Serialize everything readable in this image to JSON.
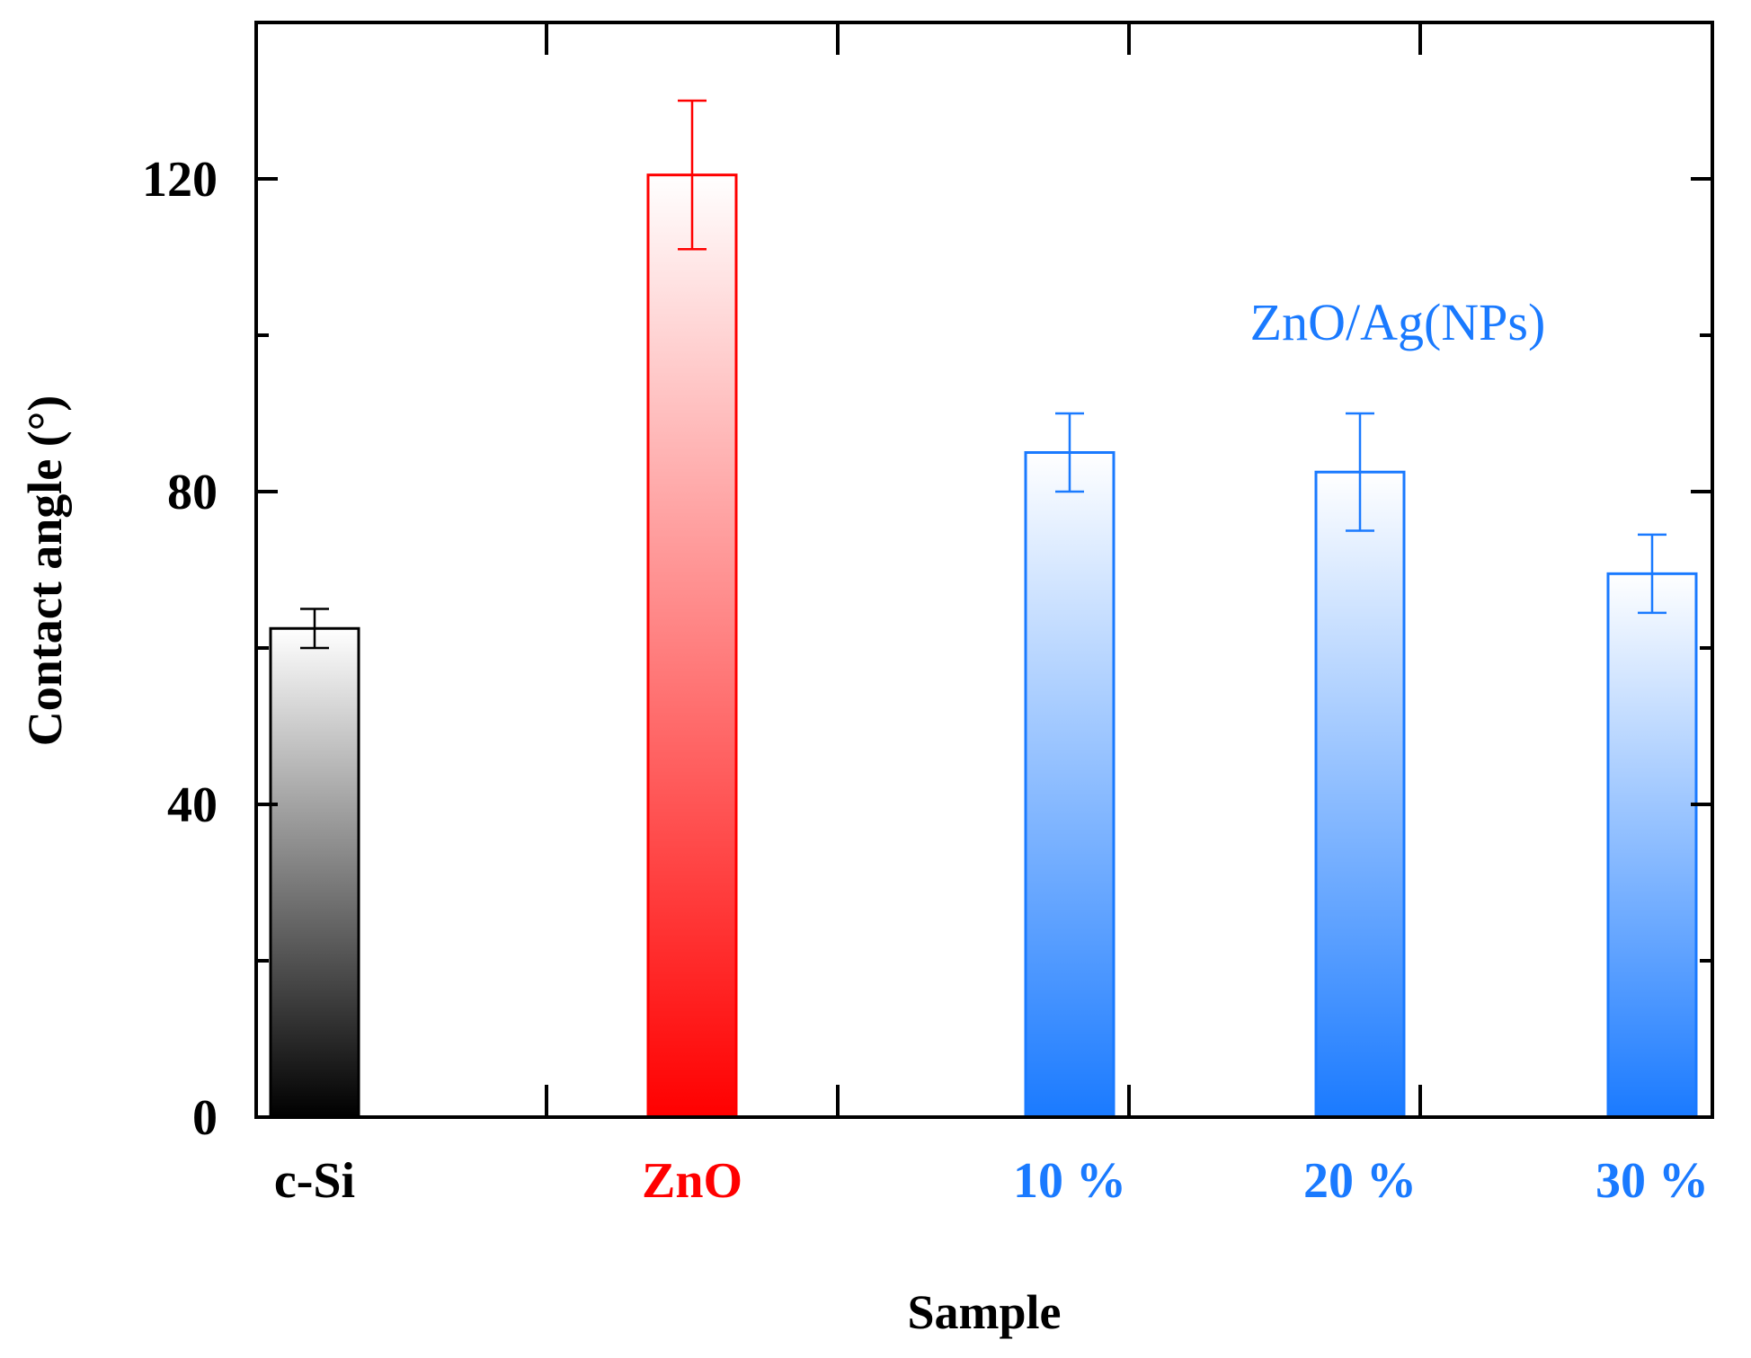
{
  "chart_data": {
    "type": "bar",
    "title": "",
    "xlabel": "Sample",
    "ylabel": "Contact angle (°)",
    "ylim": [
      0,
      140
    ],
    "y_ticks": [
      "0",
      "40",
      "80",
      "120"
    ],
    "grid": false,
    "categories": [
      "c-Si",
      "ZnO",
      "10 %",
      "20 %",
      "30 %"
    ],
    "values": [
      62.5,
      120.5,
      85,
      82.5,
      69.5
    ],
    "errors": [
      2.5,
      9.5,
      5,
      7.5,
      5
    ],
    "colors": [
      "#000000",
      "#ff0000",
      "#1a7aff",
      "#1a7aff",
      "#1a7aff"
    ],
    "annotation": {
      "text": "ZnO/Ag(NPs)",
      "color": "#1a7aff"
    }
  }
}
